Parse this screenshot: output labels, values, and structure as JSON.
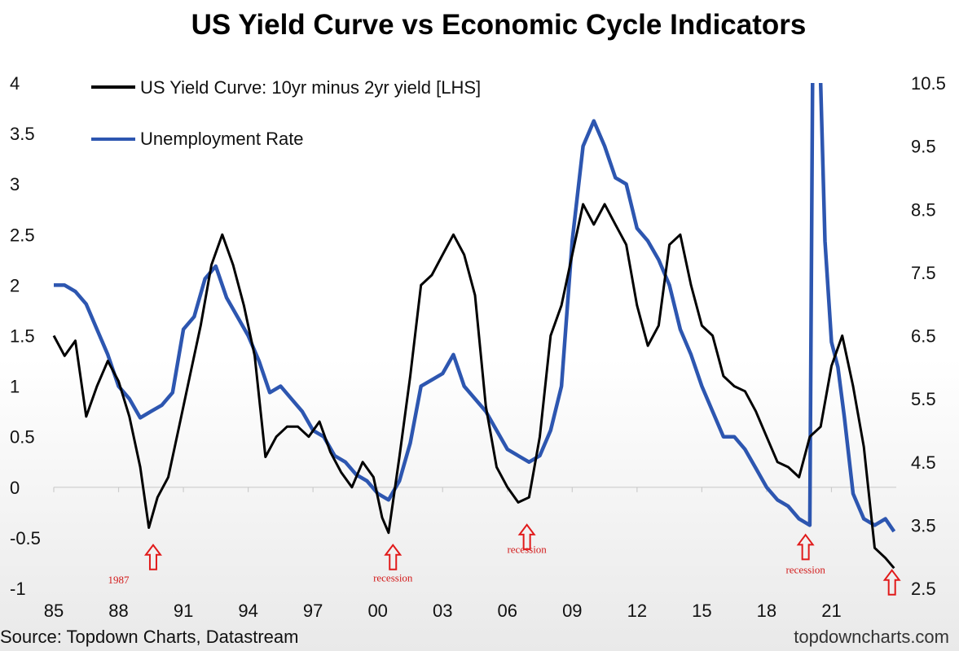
{
  "chart_data": {
    "type": "line",
    "title": "US Yield Curve vs Economic Cycle Indicators",
    "x_tick_labels": [
      "85",
      "88",
      "91",
      "94",
      "97",
      "00",
      "03",
      "06",
      "09",
      "12",
      "15",
      "18",
      "21"
    ],
    "xlim": [
      1985,
      2024
    ],
    "ylim_left": [
      -1,
      4
    ],
    "ylim_right": [
      2.5,
      10.5
    ],
    "y_left_ticks": [
      -1,
      -0.5,
      0,
      0.5,
      1,
      1.5,
      2,
      2.5,
      3,
      3.5,
      4
    ],
    "y_left_tick_labels": [
      "-1",
      "-0.5",
      "0",
      "0.5",
      "1",
      "1.5",
      "2",
      "2.5",
      "3",
      "3.5",
      "4"
    ],
    "y_right_ticks": [
      2.5,
      3.5,
      4.5,
      5.5,
      6.5,
      7.5,
      8.5,
      9.5,
      10.5
    ],
    "y_right_tick_labels": [
      "2.5",
      "3.5",
      "4.5",
      "5.5",
      "6.5",
      "7.5",
      "8.5",
      "9.5",
      "10.5"
    ],
    "legend_position": "top-left",
    "series": [
      {
        "name": "US Yield Curve: 10yr minus 2yr yield [LHS]",
        "axis": "left",
        "color": "#000000",
        "x": [
          1985.0,
          1985.5,
          1986.0,
          1986.5,
          1987.0,
          1987.5,
          1988.0,
          1988.5,
          1989.0,
          1989.4,
          1989.8,
          1990.3,
          1990.8,
          1991.3,
          1991.8,
          1992.3,
          1992.8,
          1993.3,
          1993.8,
          1994.3,
          1994.8,
          1995.3,
          1995.8,
          1996.3,
          1996.8,
          1997.3,
          1997.8,
          1998.3,
          1998.8,
          1999.3,
          1999.8,
          2000.2,
          2000.5,
          2001.0,
          2001.5,
          2002.0,
          2002.5,
          2003.0,
          2003.5,
          2004.0,
          2004.5,
          2005.0,
          2005.5,
          2006.0,
          2006.5,
          2007.0,
          2007.5,
          2008.0,
          2008.5,
          2009.0,
          2009.5,
          2010.0,
          2010.5,
          2011.0,
          2011.5,
          2012.0,
          2012.5,
          2013.0,
          2013.5,
          2014.0,
          2014.5,
          2015.0,
          2015.5,
          2016.0,
          2016.5,
          2017.0,
          2017.5,
          2018.0,
          2018.5,
          2019.0,
          2019.5,
          2020.0,
          2020.5,
          2021.0,
          2021.5,
          2022.0,
          2022.5,
          2023.0,
          2023.5,
          2023.9
        ],
        "y": [
          1.5,
          1.3,
          1.45,
          0.7,
          1.0,
          1.25,
          1.05,
          0.7,
          0.2,
          -0.4,
          -0.1,
          0.1,
          0.6,
          1.1,
          1.6,
          2.2,
          2.5,
          2.2,
          1.8,
          1.3,
          0.3,
          0.5,
          0.6,
          0.6,
          0.5,
          0.65,
          0.35,
          0.15,
          0.0,
          0.25,
          0.1,
          -0.3,
          -0.45,
          0.3,
          1.1,
          2.0,
          2.1,
          2.3,
          2.5,
          2.3,
          1.9,
          0.8,
          0.2,
          0.0,
          -0.15,
          -0.1,
          0.5,
          1.5,
          1.8,
          2.3,
          2.8,
          2.6,
          2.8,
          2.6,
          2.4,
          1.8,
          1.4,
          1.6,
          2.4,
          2.5,
          2.0,
          1.6,
          1.5,
          1.1,
          1.0,
          0.95,
          0.75,
          0.5,
          0.25,
          0.2,
          0.1,
          0.5,
          0.6,
          1.2,
          1.5,
          1.0,
          0.4,
          -0.6,
          -0.7,
          -0.8
        ]
      },
      {
        "name": "Unemployment Rate",
        "axis": "right",
        "color": "#2d56b0",
        "x": [
          1985.0,
          1985.5,
          1986.0,
          1986.5,
          1987.0,
          1987.5,
          1988.0,
          1988.5,
          1989.0,
          1989.5,
          1990.0,
          1990.5,
          1991.0,
          1991.5,
          1992.0,
          1992.5,
          1993.0,
          1993.5,
          1994.0,
          1994.5,
          1995.0,
          1995.5,
          1996.0,
          1996.5,
          1997.0,
          1997.5,
          1998.0,
          1998.5,
          1999.0,
          1999.5,
          2000.0,
          2000.5,
          2001.0,
          2001.5,
          2002.0,
          2002.5,
          2003.0,
          2003.5,
          2004.0,
          2004.5,
          2005.0,
          2005.5,
          2006.0,
          2006.5,
          2007.0,
          2007.5,
          2008.0,
          2008.5,
          2009.0,
          2009.5,
          2010.0,
          2010.5,
          2011.0,
          2011.5,
          2012.0,
          2012.5,
          2013.0,
          2013.5,
          2014.0,
          2014.5,
          2015.0,
          2015.5,
          2016.0,
          2016.5,
          2017.0,
          2017.5,
          2018.0,
          2018.5,
          2019.0,
          2019.5,
          2020.0,
          2020.2,
          2020.35,
          2020.5,
          2020.7,
          2021.0,
          2021.3,
          2021.6,
          2022.0,
          2022.5,
          2023.0,
          2023.5,
          2023.9
        ],
        "y": [
          7.3,
          7.3,
          7.2,
          7.0,
          6.6,
          6.2,
          5.7,
          5.5,
          5.2,
          5.3,
          5.4,
          5.6,
          6.6,
          6.8,
          7.4,
          7.6,
          7.1,
          6.8,
          6.5,
          6.1,
          5.6,
          5.7,
          5.5,
          5.3,
          5.0,
          4.9,
          4.6,
          4.5,
          4.3,
          4.2,
          4.0,
          3.9,
          4.2,
          4.8,
          5.7,
          5.8,
          5.9,
          6.2,
          5.7,
          5.5,
          5.3,
          5.0,
          4.7,
          4.6,
          4.5,
          4.6,
          5.0,
          5.7,
          8.0,
          9.5,
          9.9,
          9.5,
          9.0,
          8.9,
          8.2,
          8.0,
          7.7,
          7.3,
          6.6,
          6.2,
          5.7,
          5.3,
          4.9,
          4.9,
          4.7,
          4.4,
          4.1,
          3.9,
          3.8,
          3.6,
          3.5,
          14.7,
          13.0,
          10.5,
          8.0,
          6.4,
          6.0,
          5.2,
          4.0,
          3.6,
          3.5,
          3.6,
          3.4
        ]
      }
    ],
    "annotations": [
      {
        "text": "1987",
        "x": 1988.0,
        "y": -0.95
      },
      {
        "text": "recession",
        "x": 2000.7,
        "y": -0.93
      },
      {
        "text": "recession",
        "x": 2006.9,
        "y": -0.65
      },
      {
        "text": "recession",
        "x": 2019.8,
        "y": -0.85
      }
    ],
    "arrows": [
      {
        "x": 1989.6,
        "y": -0.7
      },
      {
        "x": 2000.7,
        "y": -0.7
      },
      {
        "x": 2006.9,
        "y": -0.5
      },
      {
        "x": 2019.8,
        "y": -0.6
      },
      {
        "x": 2023.8,
        "y": -0.95
      }
    ]
  },
  "footer": {
    "source": "Source: Topdown Charts, Datastream",
    "brand": "topdowncharts.com"
  }
}
